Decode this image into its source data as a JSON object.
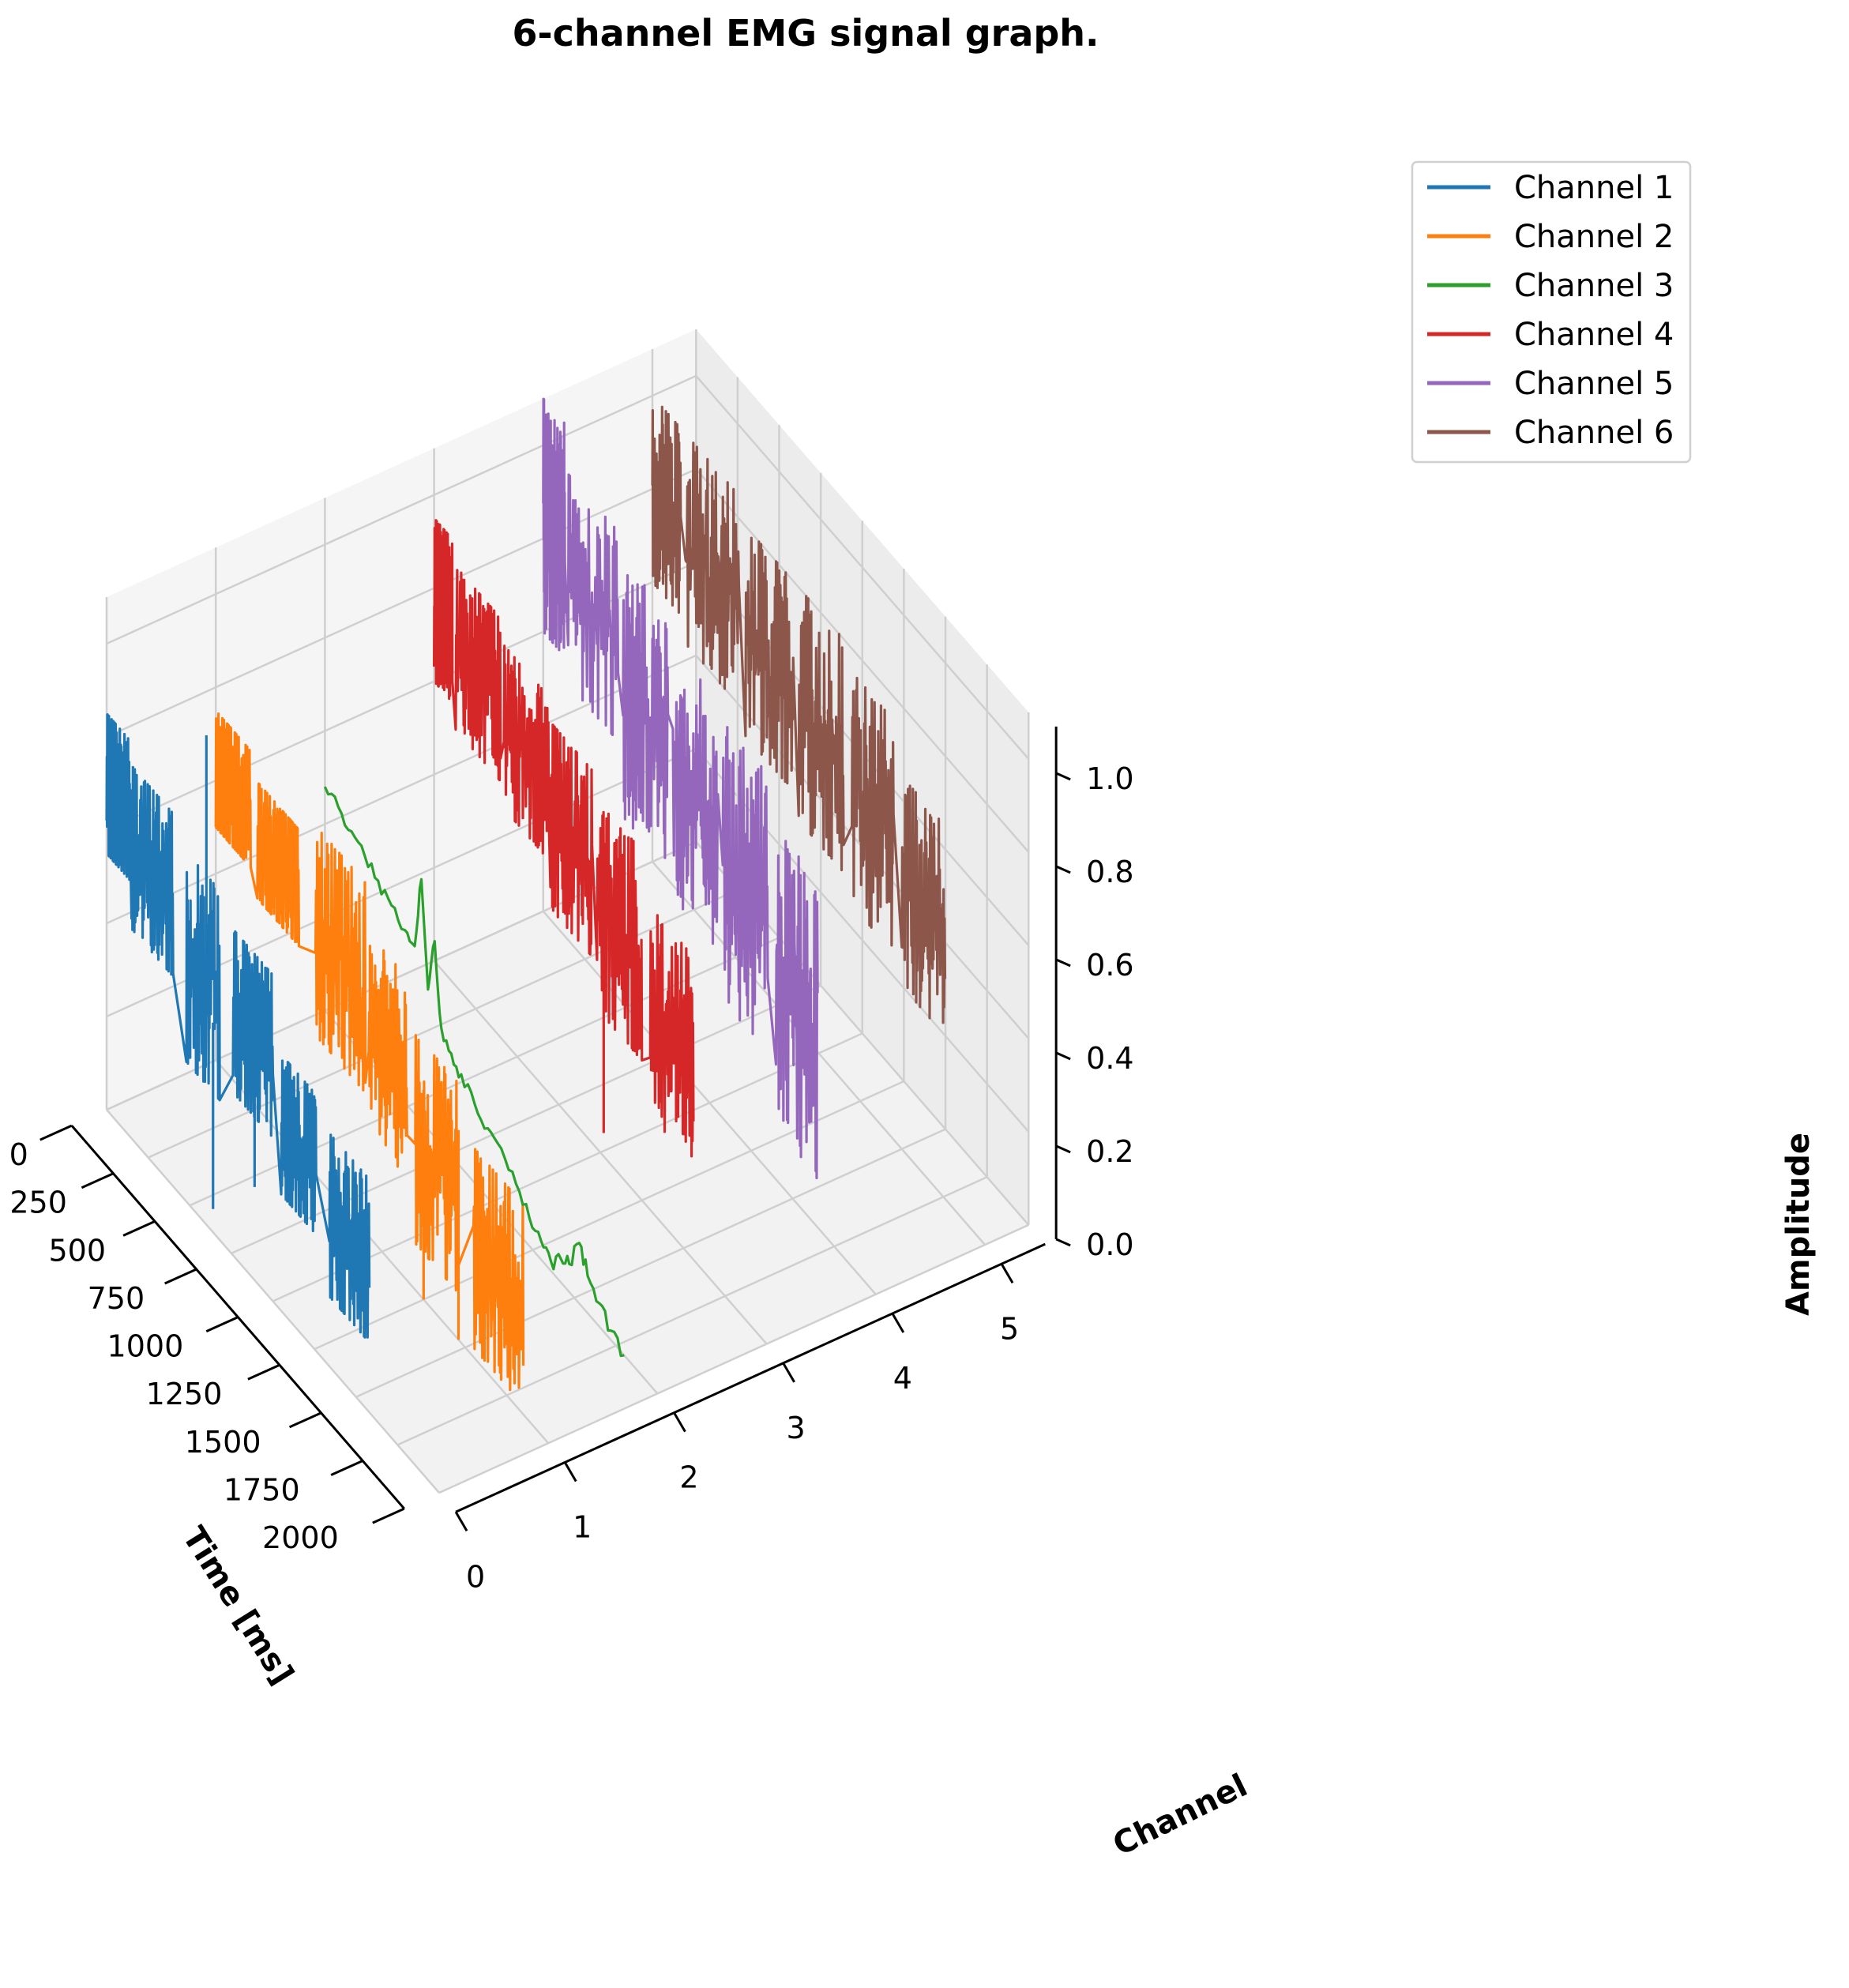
{
  "chart_data": {
    "type": "line",
    "subtype": "3d-line",
    "title": "6-channel EMG signal graph.",
    "xlabel": "Time [ms]",
    "ylabel": "Channel",
    "zlabel": "Amplitude",
    "xlim": [
      0,
      2000
    ],
    "ylim": [
      0,
      5
    ],
    "zlim": [
      0,
      1.1
    ],
    "x_ticks": [
      "0",
      "250",
      "500",
      "750",
      "1000",
      "1250",
      "1500",
      "1750",
      "2000"
    ],
    "y_ticks": [
      "0",
      "1",
      "2",
      "3",
      "4",
      "5"
    ],
    "z_ticks": [
      "0.0",
      "0.2",
      "0.4",
      "0.6",
      "0.8",
      "1.0"
    ],
    "grid": true,
    "legend_position": "top-right",
    "series": [
      {
        "name": "Channel 1",
        "channel": 0,
        "color": "#1f77b4",
        "segments": [
          {
            "x": [
              0,
              140
            ],
            "z": [
              0.55,
              0.85
            ]
          },
          {
            "x": [
              150,
              400
            ],
            "z": [
              0.45,
              0.8
            ]
          },
          {
            "x": [
              480,
              680
            ],
            "z": [
              0.3,
              0.75
            ]
          },
          {
            "x": [
              760,
              1000
            ],
            "z": [
              0.35,
              0.7
            ]
          },
          {
            "x": [
              1050,
              1260
            ],
            "z": [
              0.25,
              0.55
            ]
          },
          {
            "x": [
              1340,
              1580
            ],
            "z": [
              0.15,
              0.5
            ]
          }
        ],
        "spikes": [
          {
            "x": 600,
            "z": 1.05
          },
          {
            "x": 640,
            "z": 0.05
          },
          {
            "x": 890,
            "z": 0.2
          }
        ]
      },
      {
        "name": "Channel 2",
        "channel": 1,
        "color": "#ff7f0e",
        "segments": [
          {
            "x": [
              0,
              210
            ],
            "z": [
              0.5,
              0.75
            ]
          },
          {
            "x": [
              250,
              500
            ],
            "z": [
              0.45,
              0.7
            ]
          },
          {
            "x": [
              600,
              900
            ],
            "z": [
              0.3,
              0.75
            ]
          },
          {
            "x": [
              920,
              1150
            ],
            "z": [
              0.2,
              0.65
            ]
          },
          {
            "x": [
              1200,
              1450
            ],
            "z": [
              0.1,
              0.55
            ]
          },
          {
            "x": [
              1550,
              1850
            ],
            "z": [
              0.02,
              0.45
            ]
          }
        ],
        "spikes": [
          {
            "x": 1250,
            "z": 0.0
          },
          {
            "x": 1460,
            "z": 0.0
          }
        ]
      },
      {
        "name": "Channel 3",
        "channel": 2,
        "color": "#2ca02c",
        "points": [
          [
            0,
            0.48
          ],
          [
            80,
            0.47
          ],
          [
            160,
            0.45
          ],
          [
            240,
            0.43
          ],
          [
            320,
            0.41
          ],
          [
            400,
            0.39
          ],
          [
            480,
            0.37
          ],
          [
            540,
            0.36
          ],
          [
            580,
            0.52
          ],
          [
            620,
            0.3
          ],
          [
            660,
            0.42
          ],
          [
            700,
            0.25
          ],
          [
            760,
            0.22
          ],
          [
            820,
            0.2
          ],
          [
            900,
            0.17
          ],
          [
            980,
            0.15
          ],
          [
            1060,
            0.14
          ],
          [
            1150,
            0.1
          ],
          [
            1230,
            0.06
          ],
          [
            1300,
            0.04
          ],
          [
            1360,
            0.02
          ],
          [
            1420,
            0.05
          ],
          [
            1470,
            0.06
          ],
          [
            1530,
            0.13
          ],
          [
            1580,
            0.08
          ],
          [
            1650,
            0.05
          ],
          [
            1720,
            0.02
          ],
          [
            1800,
            0.0
          ]
        ]
      },
      {
        "name": "Channel 4",
        "channel": 3,
        "color": "#d62728",
        "segments": [
          {
            "x": [
              0,
              110
            ],
            "z": [
              0.6,
              0.95
            ]
          },
          {
            "x": [
              130,
              400
            ],
            "z": [
              0.55,
              0.9
            ]
          },
          {
            "x": [
              420,
              690
            ],
            "z": [
              0.5,
              0.85
            ]
          },
          {
            "x": [
              700,
              950
            ],
            "z": [
              0.4,
              0.8
            ]
          },
          {
            "x": [
              980,
              1250
            ],
            "z": [
              0.3,
              0.75
            ]
          },
          {
            "x": [
              1300,
              1560
            ],
            "z": [
              0.2,
              0.65
            ]
          }
        ],
        "spikes": [
          {
            "x": 1020,
            "z": 0.05
          }
        ]
      },
      {
        "name": "Channel 5",
        "channel": 4,
        "color": "#9467bd",
        "segments": [
          {
            "x": [
              0,
              130
            ],
            "z": [
              0.6,
              1.1
            ]
          },
          {
            "x": [
              150,
              450
            ],
            "z": [
              0.55,
              1.0
            ]
          },
          {
            "x": [
              480,
              750
            ],
            "z": [
              0.4,
              0.95
            ]
          },
          {
            "x": [
              780,
              1050
            ],
            "z": [
              0.35,
              0.9
            ]
          },
          {
            "x": [
              1080,
              1350
            ],
            "z": [
              0.25,
              0.85
            ]
          },
          {
            "x": [
              1400,
              1650
            ],
            "z": [
              0.1,
              0.75
            ]
          }
        ]
      },
      {
        "name": "Channel 6",
        "channel": 5,
        "color": "#8c564b",
        "segments": [
          {
            "x": [
              0,
              170
            ],
            "z": [
              0.6,
              1.0
            ]
          },
          {
            "x": [
              200,
              520
            ],
            "z": [
              0.55,
              1.0
            ]
          },
          {
            "x": [
              560,
              850
            ],
            "z": [
              0.5,
              0.95
            ]
          },
          {
            "x": [
              880,
              1150
            ],
            "z": [
              0.45,
              0.95
            ]
          },
          {
            "x": [
              1200,
              1450
            ],
            "z": [
              0.4,
              0.9
            ]
          },
          {
            "x": [
              1500,
              1760
            ],
            "z": [
              0.35,
              0.8
            ]
          }
        ]
      }
    ]
  }
}
